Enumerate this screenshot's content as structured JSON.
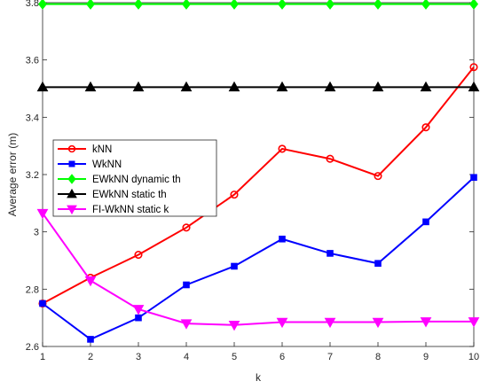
{
  "chart_data": {
    "type": "line",
    "title": "",
    "xlabel": "k",
    "ylabel": "Average error (m)",
    "xlim": [
      1,
      10
    ],
    "ylim": [
      2.6,
      3.8
    ],
    "x": [
      1,
      2,
      3,
      4,
      5,
      6,
      7,
      8,
      9,
      10
    ],
    "x_tick_labels": [
      "1",
      "2",
      "3",
      "4",
      "5",
      "6",
      "7",
      "8",
      "9",
      "10"
    ],
    "y_ticks": [
      2.6,
      2.8,
      3,
      3.2,
      3.4,
      3.6,
      3.8
    ],
    "y_tick_labels": [
      "2.6",
      "2.8",
      "3",
      "3.2",
      "3.4",
      "3.6",
      "3.8"
    ],
    "grid": false,
    "legend_placement": "middle-left",
    "series": [
      {
        "name": "kNN",
        "color": "#ff0000",
        "marker": "circle",
        "values": [
          2.75,
          2.84,
          2.92,
          3.015,
          3.13,
          3.29,
          3.255,
          3.195,
          3.365,
          3.575
        ]
      },
      {
        "name": "WkNN",
        "color": "#0000ff",
        "marker": "square",
        "values": [
          2.75,
          2.625,
          2.7,
          2.815,
          2.88,
          2.975,
          2.925,
          2.89,
          3.035,
          3.19
        ]
      },
      {
        "name": "EWkNN dynamic th",
        "color": "#00ff00",
        "marker": "diamond",
        "values": [
          3.795,
          3.795,
          3.795,
          3.795,
          3.795,
          3.795,
          3.795,
          3.795,
          3.795,
          3.795
        ]
      },
      {
        "name": "EWkNN static th",
        "color": "#000000",
        "marker": "triangle-up",
        "values": [
          3.505,
          3.505,
          3.505,
          3.505,
          3.505,
          3.505,
          3.505,
          3.505,
          3.505,
          3.505
        ]
      },
      {
        "name": "FI-WkNN static k",
        "color": "#ff00ff",
        "marker": "triangle-down",
        "values": [
          3.065,
          2.83,
          2.73,
          2.68,
          2.675,
          2.685,
          2.685,
          2.685,
          2.687,
          2.687
        ]
      }
    ]
  }
}
